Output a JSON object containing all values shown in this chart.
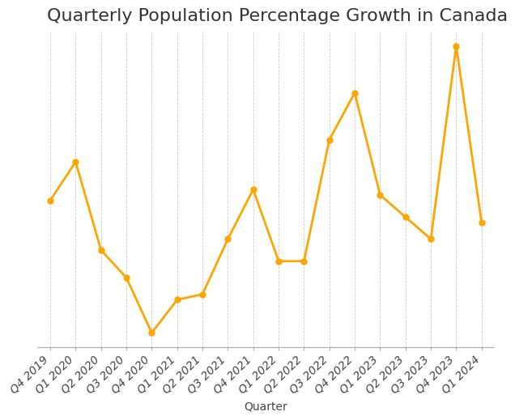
{
  "title": "Quarterly Population Percentage Growth in Canada",
  "xlabel": "Quarter",
  "line_color": "#FFA500",
  "marker_color": "#FFA500",
  "background_color": "#ffffff",
  "grid_color": "#cccccc",
  "categories": [
    "Q4 2019",
    "Q1 2020",
    "Q2 2020",
    "Q3 2020",
    "Q4 2020",
    "Q1 2021",
    "Q2 2021",
    "Q3 2021",
    "Q4 2021",
    "Q1 2022",
    "Q2 2022",
    "Q3 2022",
    "Q4 2022",
    "Q1 2023",
    "Q2 2023",
    "Q3 2023",
    "Q4 2023",
    "Q1 2024"
  ],
  "values": [
    0.56,
    0.7,
    0.38,
    0.28,
    0.08,
    0.2,
    0.22,
    0.42,
    0.6,
    0.34,
    0.34,
    0.78,
    0.95,
    0.58,
    0.5,
    0.42,
    1.12,
    0.48
  ],
  "title_fontsize": 16,
  "tick_fontsize": 10,
  "line_width": 2.0,
  "marker_size": 5
}
